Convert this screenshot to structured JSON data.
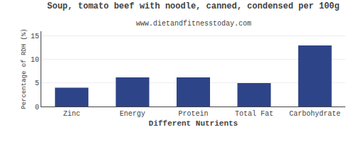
{
  "chart_data": {
    "type": "bar",
    "title": "Soup, tomato beef with noodle, canned, condensed per 100g",
    "subtitle": "www.dietandfitnesstoday.com",
    "xlabel": "Different Nutrients",
    "ylabel": "Percentage of RDH (%)",
    "categories": [
      "Zinc",
      "Energy",
      "Protein",
      "Total Fat",
      "Carbohydrate"
    ],
    "values": [
      4.0,
      6.2,
      6.2,
      5.0,
      13.0
    ],
    "color": "#2e4488",
    "ylim": [
      0,
      16
    ],
    "yticks": [
      0,
      5,
      10,
      15
    ],
    "grid": true
  }
}
